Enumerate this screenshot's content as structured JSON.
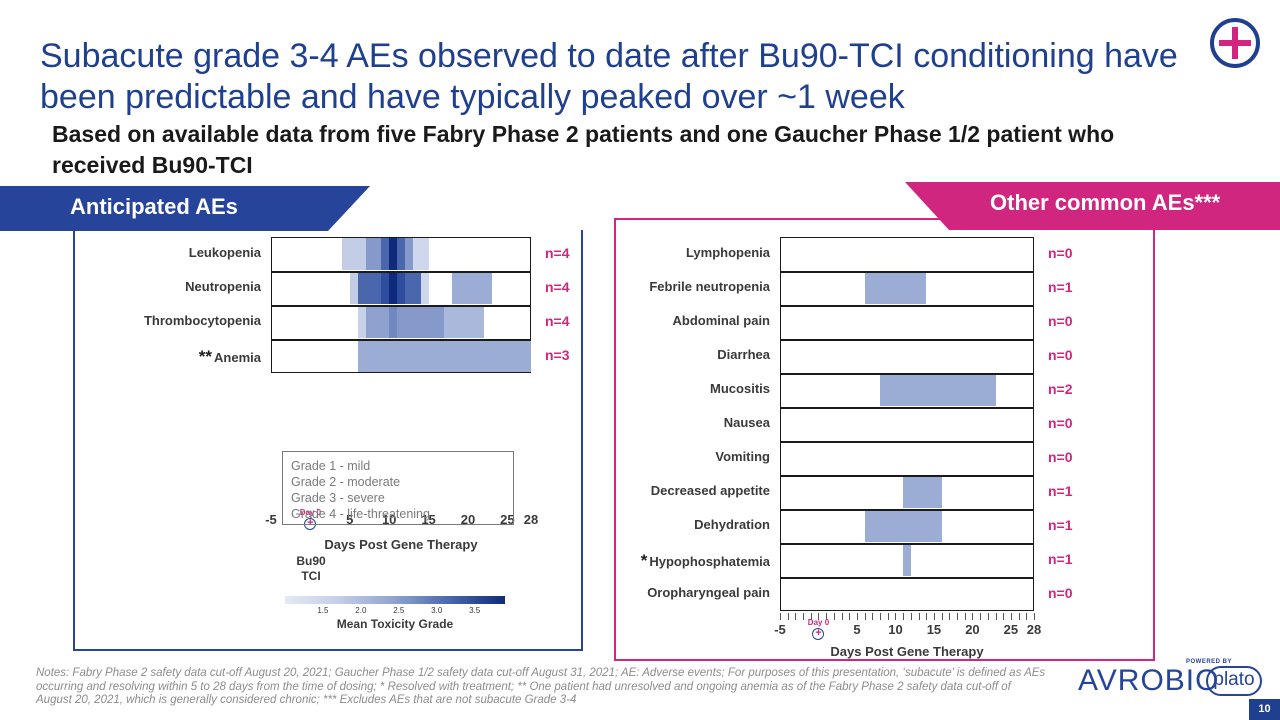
{
  "slide": {
    "title": "Subacute grade 3-4 AEs observed to date after Bu90-TCI conditioning have been predictable and have typically peaked over ~1 week",
    "subtitle": "Based on available data from five Fabry Phase 2 patients and one Gaucher Phase 1/2 patient who received Bu90-TCI",
    "page_number": "10",
    "notes": "Notes: Fabry Phase 2 safety data cut-off August 20, 2021; Gaucher Phase 1/2 safety data cut-off August 31, 2021; AE: Adverse events; For purposes of this presentation, ‘subacute’ is defined as AEs occurring and resolving within 5 to 28 days from the time of dosing; * Resolved with treatment; ** One patient had unresolved and ongoing anemia as of the Fabry Phase 2 safety data cut-off of August 20, 2021, which is generally considered chronic; *** Excludes AEs that are not subacute Grade 3-4",
    "brand": "AVROBIO",
    "powered_by": "POWERED BY",
    "platform": "plato"
  },
  "colors": {
    "navy": "#1f3f8f",
    "magenta": "#d0267f",
    "bar_light": "#c3cee6",
    "bar_mid": "#8fa2cf",
    "bar_dark": "#2f4d9e",
    "bar_darkest": "#0f2a7a"
  },
  "legend": {
    "grades": [
      "Grade 1 - mild",
      "Grade 2 - moderate",
      "Grade 3 - severe",
      "Grade 4 - life-threatening"
    ],
    "colorbar_label_line1": "Bu90",
    "colorbar_label_line2": "TCI",
    "colorbar_ticks": [
      "1.5",
      "2.0",
      "2.5",
      "3.0",
      "3.5"
    ],
    "colorbar_title": "Mean Toxicity Grade",
    "colorbar_min": 1.0,
    "colorbar_max": 3.9
  },
  "chart_data": [
    {
      "type": "heatmap",
      "panel_title": "Anticipated AEs",
      "xlabel": "Days Post Gene Therapy",
      "day0_label": "Day 0",
      "xlim": [
        -5,
        28
      ],
      "x_ticks": [
        "-5",
        "5",
        "10",
        "15",
        "20",
        "25",
        "28"
      ],
      "x_tick_values": [
        -5,
        5,
        10,
        15,
        20,
        25,
        28
      ],
      "rows": [
        {
          "name": "Leukopenia",
          "prefix": "",
          "n": "n=4",
          "segments": [
            [
              4,
              7,
              1.9
            ],
            [
              7,
              9,
              2.4
            ],
            [
              9,
              10,
              3.0
            ],
            [
              10,
              11,
              3.9
            ],
            [
              11,
              12,
              3.0
            ],
            [
              12,
              13,
              2.4
            ],
            [
              13,
              15,
              1.6
            ]
          ]
        },
        {
          "name": "Neutropenia",
          "prefix": "",
          "n": "n=4",
          "segments": [
            [
              5,
              6,
              1.9
            ],
            [
              6,
              9,
              3.0
            ],
            [
              9,
              10,
              3.5
            ],
            [
              10,
              11,
              3.9
            ],
            [
              11,
              12,
              3.5
            ],
            [
              12,
              14,
              3.0
            ],
            [
              14,
              15,
              1.6
            ],
            [
              18,
              23,
              2.2
            ]
          ]
        },
        {
          "name": "Thrombocytopenia",
          "prefix": "",
          "n": "n=4",
          "segments": [
            [
              6,
              7,
              1.8
            ],
            [
              7,
              10,
              2.3
            ],
            [
              10,
              11,
              2.6
            ],
            [
              11,
              17,
              2.4
            ],
            [
              17,
              22,
              2.1
            ]
          ]
        },
        {
          "name": "Anemia",
          "prefix": "**",
          "n": "n=3",
          "segments": [
            [
              6,
              28,
              2.2
            ]
          ]
        }
      ]
    },
    {
      "type": "heatmap",
      "panel_title": "Other common AEs***",
      "xlabel": "Days Post Gene Therapy",
      "day0_label": "Day 0",
      "xlim": [
        -5,
        28
      ],
      "x_ticks": [
        "-5",
        "5",
        "10",
        "15",
        "20",
        "25",
        "28"
      ],
      "x_tick_values": [
        -5,
        5,
        10,
        15,
        20,
        25,
        28
      ],
      "rows": [
        {
          "name": "Lymphopenia",
          "prefix": "",
          "n": "n=0",
          "segments": []
        },
        {
          "name": "Febrile neutropenia",
          "prefix": "",
          "n": "n=1",
          "segments": [
            [
              6,
              14,
              2.2
            ]
          ]
        },
        {
          "name": "Abdominal pain",
          "prefix": "",
          "n": "n=0",
          "segments": []
        },
        {
          "name": "Diarrhea",
          "prefix": "",
          "n": "n=0",
          "segments": []
        },
        {
          "name": "Mucositis",
          "prefix": "",
          "n": "n=2",
          "segments": [
            [
              8,
              23,
              2.2
            ]
          ]
        },
        {
          "name": "Nausea",
          "prefix": "",
          "n": "n=0",
          "segments": []
        },
        {
          "name": "Vomiting",
          "prefix": "",
          "n": "n=0",
          "segments": []
        },
        {
          "name": "Decreased appetite",
          "prefix": "",
          "n": "n=1",
          "segments": [
            [
              11,
              16,
              2.2
            ]
          ]
        },
        {
          "name": "Dehydration",
          "prefix": "",
          "n": "n=1",
          "segments": [
            [
              6,
              16,
              2.2
            ]
          ]
        },
        {
          "name": "Hypophosphatemia",
          "prefix": "*",
          "n": "n=1",
          "segments": [
            [
              11,
              12,
              2.2
            ]
          ]
        },
        {
          "name": "Oropharyngeal pain",
          "prefix": "",
          "n": "n=0",
          "segments": []
        }
      ]
    }
  ]
}
